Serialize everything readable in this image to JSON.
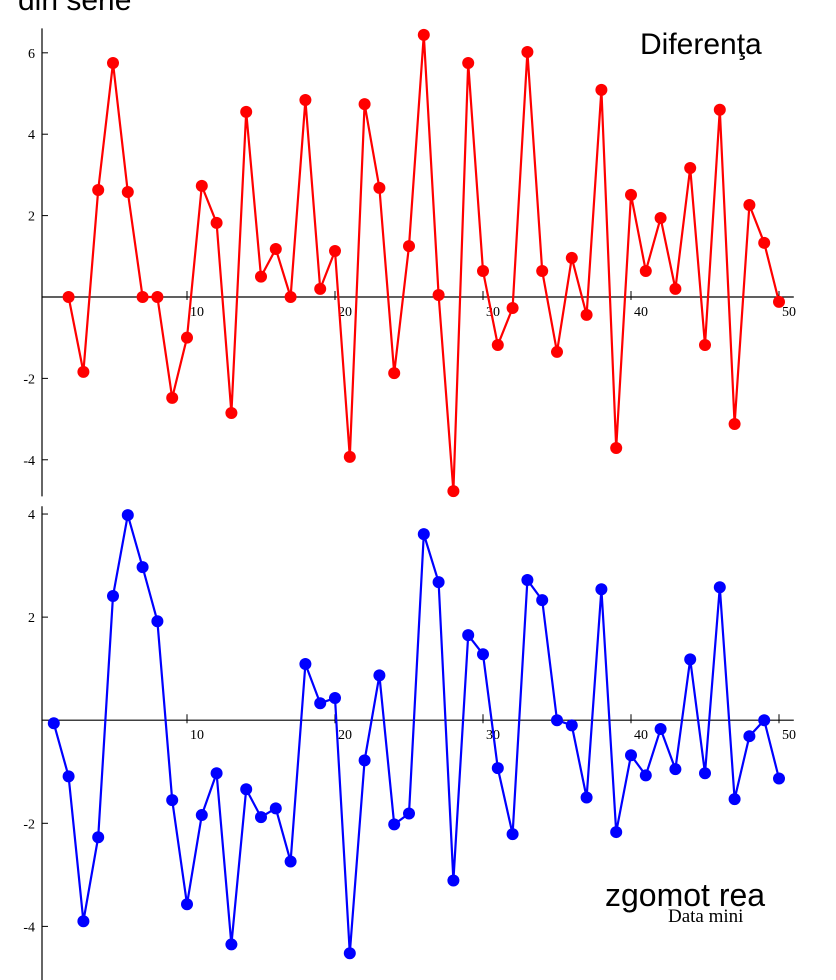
{
  "slide_texts": {
    "top_left": "din serie",
    "top_right": "Diferenţa",
    "bottom_right": "zgomot rea",
    "bottom_small": "Data mini"
  },
  "chart_data": [
    {
      "type": "line",
      "color": "#ff0000",
      "x": [
        2,
        3,
        4,
        5,
        6,
        7,
        8,
        9,
        10,
        11,
        12,
        13,
        14,
        15,
        16,
        17,
        18,
        19,
        20,
        21,
        22,
        23,
        24,
        25,
        26,
        27,
        28,
        29,
        30,
        31,
        32,
        33,
        34,
        35,
        36,
        37,
        38,
        39,
        40,
        41,
        42,
        43,
        44,
        45,
        46,
        47,
        48,
        49,
        50
      ],
      "values": [
        0,
        -1.84,
        2.63,
        5.75,
        2.58,
        0,
        0,
        -2.48,
        -1.0,
        2.73,
        1.82,
        -2.85,
        4.55,
        0.5,
        1.18,
        0,
        4.84,
        0.2,
        1.13,
        -3.93,
        4.74,
        2.68,
        -1.87,
        1.25,
        6.44,
        0.05,
        -4.77,
        5.75,
        0.64,
        -1.18,
        -0.27,
        6.02,
        0.64,
        -1.35,
        0.96,
        -0.44,
        5.09,
        -3.71,
        2.51,
        0.64,
        1.94,
        0.2,
        3.17,
        -1.18,
        4.6,
        -3.12,
        2.26,
        1.33,
        -0.12
      ],
      "xlim": [
        0,
        51
      ],
      "ylim": [
        -4.9,
        6.6
      ],
      "xticks": [
        10,
        20,
        30,
        40,
        50
      ],
      "yticks": [
        -4,
        -2,
        2,
        4,
        6
      ]
    },
    {
      "type": "line",
      "color": "#0000ff",
      "x": [
        1,
        2,
        3,
        4,
        5,
        6,
        7,
        8,
        9,
        10,
        11,
        12,
        13,
        14,
        15,
        16,
        17,
        18,
        19,
        20,
        21,
        22,
        23,
        24,
        25,
        26,
        27,
        28,
        29,
        30,
        31,
        32,
        33,
        34,
        35,
        36,
        37,
        38,
        39,
        40,
        41,
        42,
        43,
        44,
        45,
        46,
        47,
        48,
        49,
        50
      ],
      "values": [
        -0.06,
        -1.09,
        -3.9,
        -2.27,
        2.41,
        3.98,
        2.97,
        1.92,
        -1.55,
        -3.57,
        -1.84,
        -1.03,
        -4.35,
        -1.34,
        -1.88,
        -1.71,
        -2.74,
        1.09,
        0.33,
        0.43,
        -4.52,
        -0.78,
        0.87,
        -2.02,
        -1.81,
        3.61,
        2.68,
        -3.11,
        1.65,
        1.28,
        -0.93,
        -2.21,
        2.72,
        2.33,
        0,
        -0.1,
        -1.5,
        2.54,
        -2.17,
        -0.68,
        -1.07,
        -0.17,
        -0.95,
        1.18,
        -1.03,
        2.58,
        -1.53,
        -0.31,
        0,
        -1.13
      ],
      "xlim": [
        0,
        51
      ],
      "ylim": [
        -5.04,
        4.15
      ],
      "xticks": [
        10,
        20,
        30,
        40,
        50
      ],
      "yticks": [
        -4,
        -2,
        2,
        4
      ]
    }
  ]
}
